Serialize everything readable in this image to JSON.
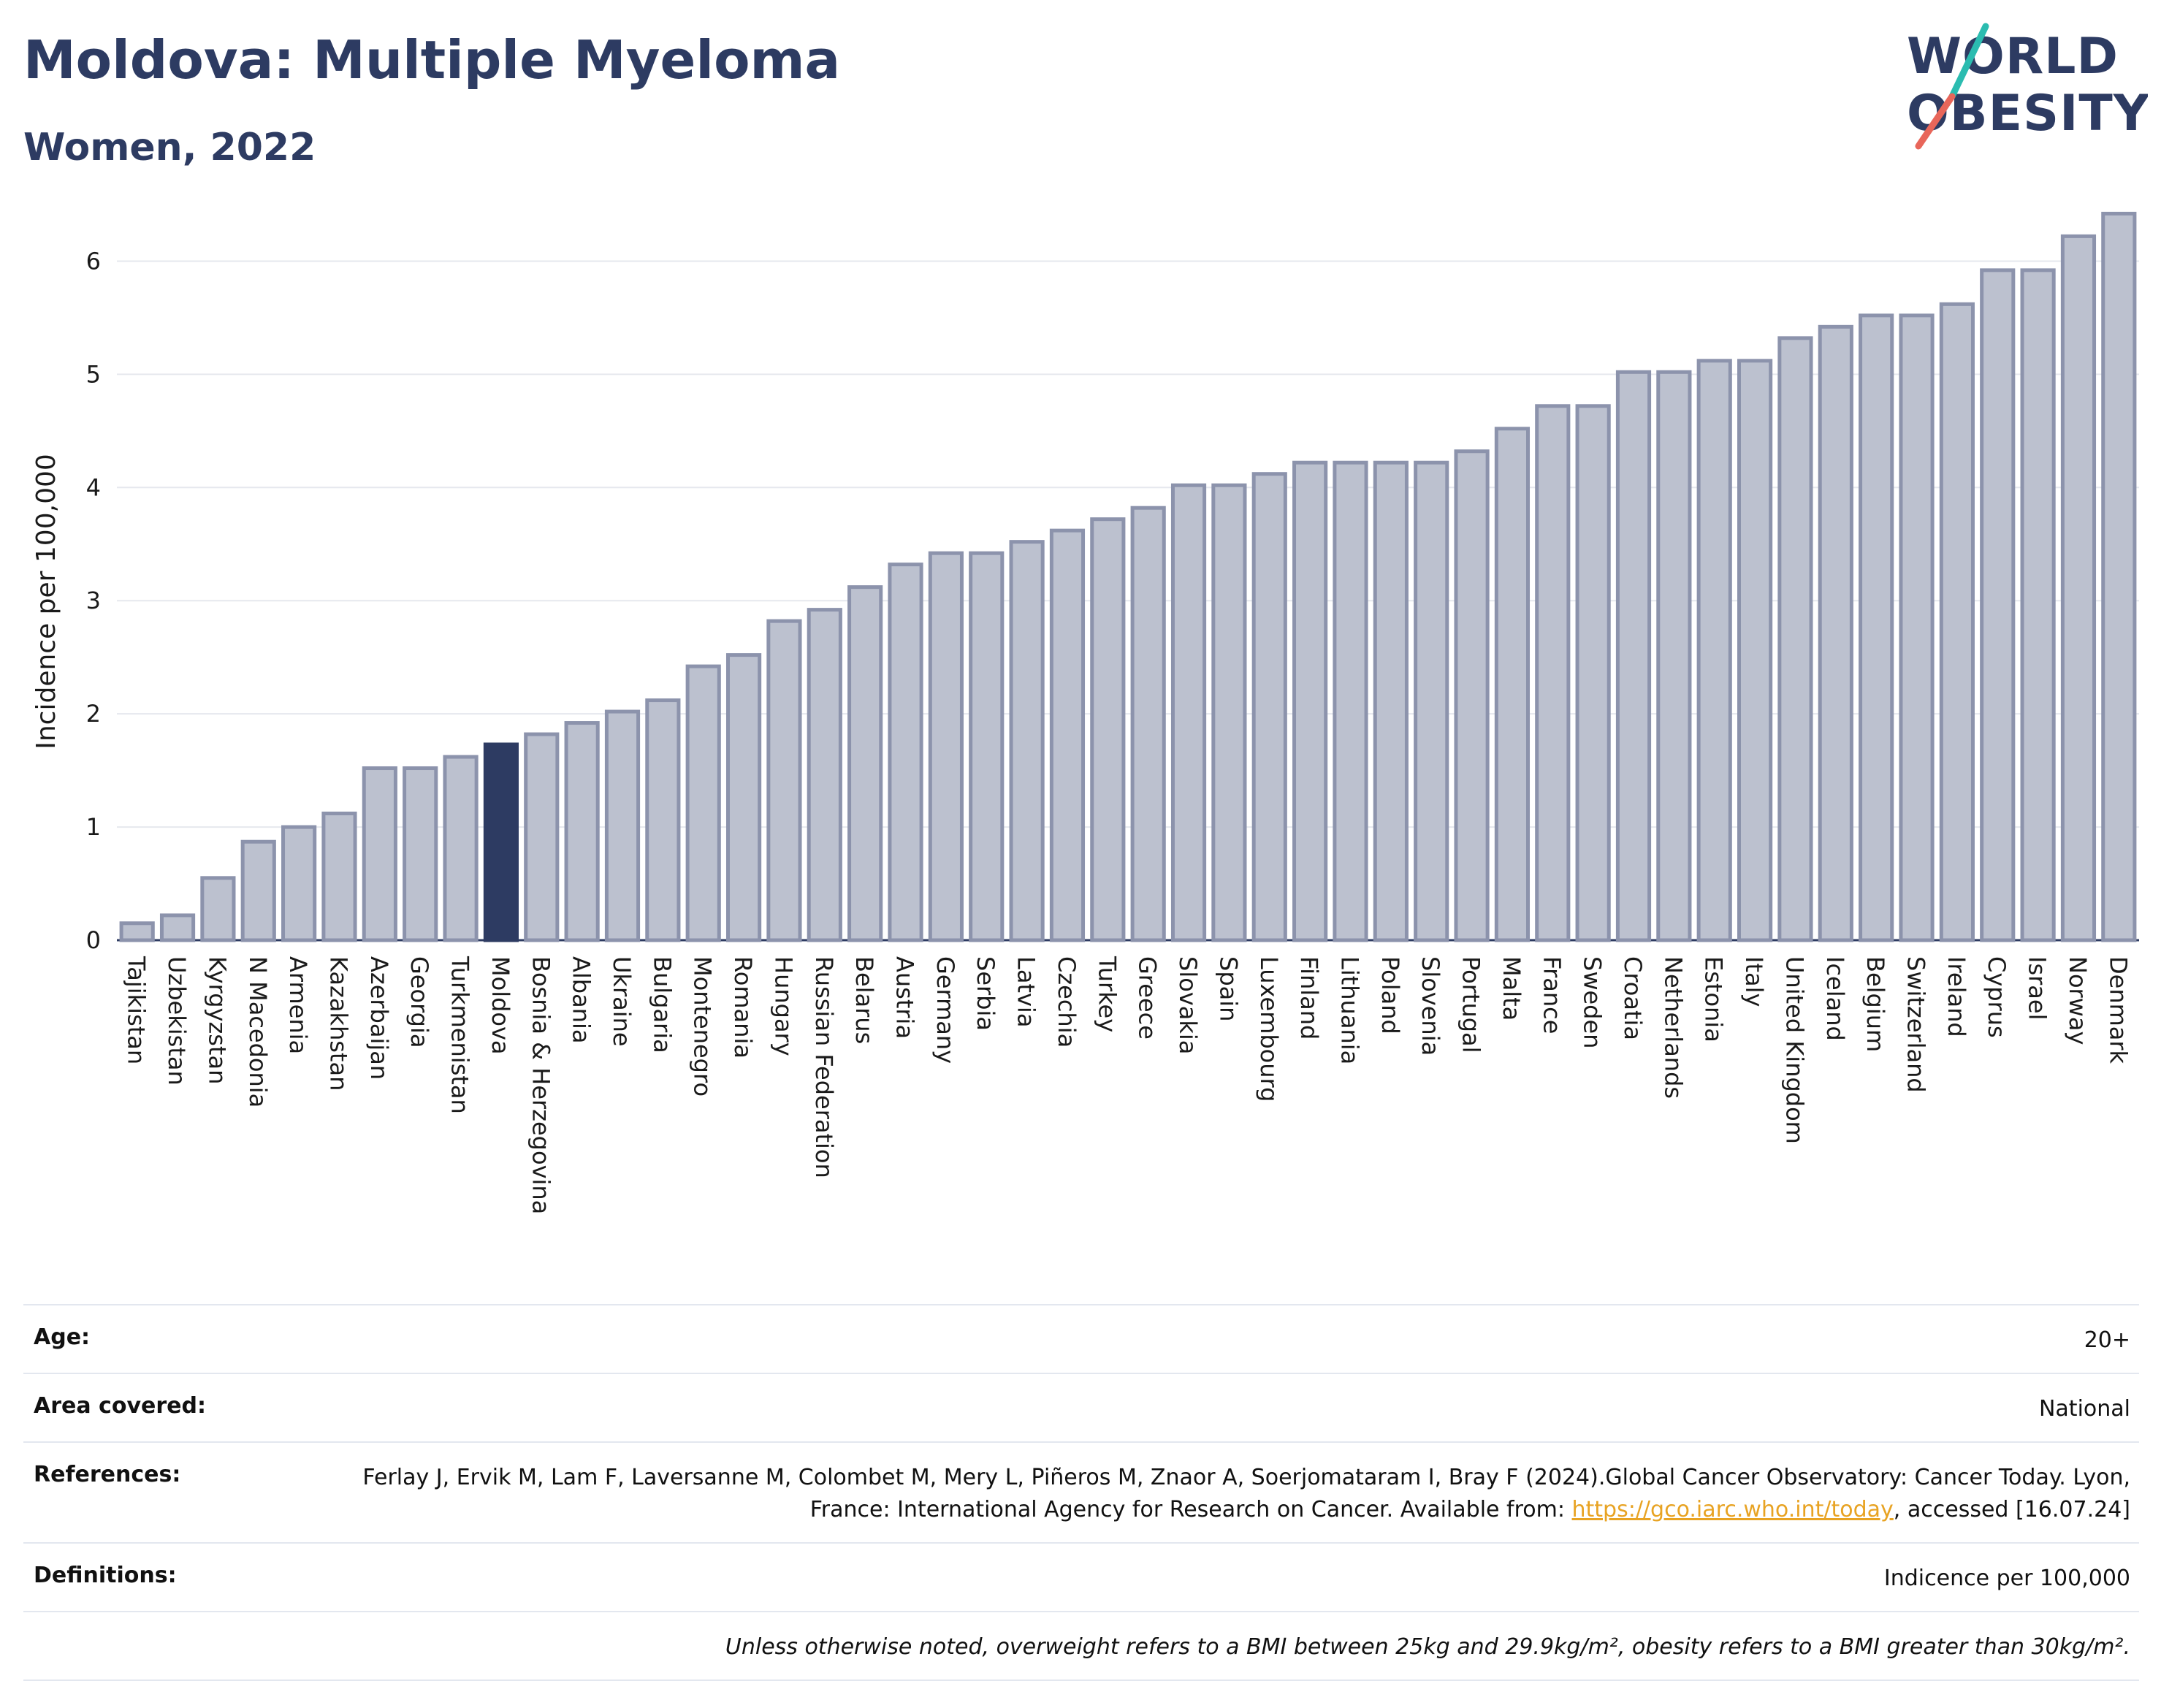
{
  "header": {
    "title": "Moldova: Multiple Myeloma",
    "subtitle": "Women, 2022",
    "logo_line1": "WORLD",
    "logo_line2": "OBESITY"
  },
  "colors": {
    "bar": "#bcc1cf",
    "bar_outline": "#8c93ac",
    "highlight": "#2d3b62",
    "logo_teal": "#2bbcb0",
    "logo_red": "#e8665a"
  },
  "chart_data": {
    "type": "bar",
    "ylabel": "Incidence per 100,000",
    "ylim": [
      0,
      6.5
    ],
    "yticks": [
      0,
      1,
      2,
      3,
      4,
      5,
      6
    ],
    "grid": true,
    "highlight": "Moldova",
    "categories": [
      "Tajikistan",
      "Uzbekistan",
      "Kyrgyzstan",
      "N Macedonia",
      "Armenia",
      "Kazakhstan",
      "Azerbaijan",
      "Georgia",
      "Turkmenistan",
      "Moldova",
      "Bosnia & Herzegovina",
      "Albania",
      "Ukraine",
      "Bulgaria",
      "Montenegro",
      "Romania",
      "Hungary",
      "Russian Federation",
      "Belarus",
      "Austria",
      "Germany",
      "Serbia",
      "Latvia",
      "Czechia",
      "Turkey",
      "Greece",
      "Slovakia",
      "Spain",
      "Luxembourg",
      "Finland",
      "Lithuania",
      "Poland",
      "Slovenia",
      "Portugal",
      "Malta",
      "France",
      "Sweden",
      "Croatia",
      "Netherlands",
      "Estonia",
      "Italy",
      "United Kingdom",
      "Iceland",
      "Belgium",
      "Switzerland",
      "Ireland",
      "Cyprus",
      "Israel",
      "Norway",
      "Denmark"
    ],
    "values": [
      0.15,
      0.22,
      0.55,
      0.87,
      1.0,
      1.12,
      1.52,
      1.52,
      1.62,
      1.73,
      1.82,
      1.92,
      2.02,
      2.12,
      2.42,
      2.52,
      2.82,
      2.92,
      3.12,
      3.32,
      3.42,
      3.42,
      3.52,
      3.62,
      3.72,
      3.82,
      4.02,
      4.02,
      4.12,
      4.22,
      4.22,
      4.22,
      4.22,
      4.32,
      4.52,
      4.72,
      4.72,
      5.02,
      5.02,
      5.12,
      5.12,
      5.32,
      5.42,
      5.52,
      5.52,
      5.62,
      5.92,
      5.92,
      6.22,
      6.42
    ]
  },
  "meta": {
    "age_label": "Age:",
    "age_value": "20+",
    "area_label": "Area covered:",
    "area_value": "National",
    "references_label": "References:",
    "references_text1": "Ferlay J, Ervik M, Lam F, Laversanne M, Colombet M, Mery L, Piñeros M, Znaor A, Soerjomataram I, Bray F (2024).Global Cancer Observatory: Cancer Today. Lyon, France: International Agency for Research on Cancer. Available from:",
    "references_link": "https://gco.iarc.who.int/today",
    "references_text2": ", accessed [16.07.24]",
    "definitions_label": "Definitions:",
    "definitions_value": "Indicence per 100,000",
    "note": "Unless otherwise noted, overweight refers to a BMI between 25kg and 29.9kg/m², obesity refers to a BMI greater than 30kg/m²."
  }
}
